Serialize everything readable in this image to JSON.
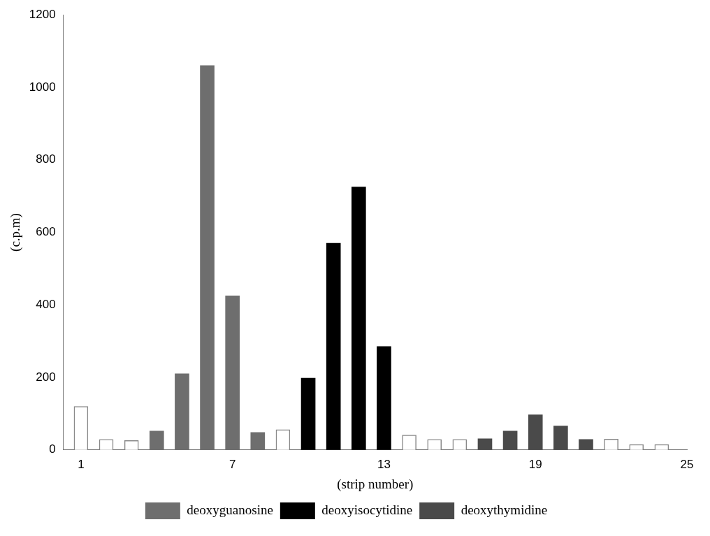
{
  "chart_data": {
    "type": "bar",
    "xlabel": "(strip number)",
    "ylabel": "(c.p.m)",
    "x": [
      1,
      2,
      3,
      4,
      5,
      6,
      7,
      8,
      9,
      10,
      11,
      12,
      13,
      14,
      15,
      16,
      17,
      18,
      19,
      20,
      21,
      22,
      23,
      24
    ],
    "xlim": [
      0.3,
      25
    ],
    "xticks": [
      1,
      7,
      13,
      19,
      25
    ],
    "ylim": [
      0,
      1200
    ],
    "yticks": [
      0,
      200,
      400,
      600,
      800,
      1000,
      1200
    ],
    "grid": false,
    "legend": "bottom",
    "series": [
      {
        "name": "deoxyguanosine",
        "color": "#6e6e6e",
        "values": [
          null,
          null,
          null,
          52,
          210,
          1060,
          425,
          48,
          null,
          null,
          null,
          null,
          null,
          null,
          null,
          null,
          null,
          null,
          null,
          null,
          null,
          null,
          null,
          null
        ]
      },
      {
        "name": "deoxyisocytidine",
        "color": "#000000",
        "values": [
          null,
          null,
          null,
          null,
          null,
          null,
          null,
          null,
          null,
          198,
          570,
          725,
          285,
          null,
          null,
          null,
          null,
          null,
          null,
          null,
          null,
          null,
          null,
          null
        ]
      },
      {
        "name": "deoxythymidine",
        "color": "#4a4a4a",
        "values": [
          null,
          null,
          null,
          null,
          null,
          null,
          null,
          null,
          null,
          null,
          null,
          null,
          null,
          null,
          null,
          null,
          31,
          52,
          97,
          66,
          29,
          null,
          null,
          null
        ]
      },
      {
        "color": "#ffffff",
        "values": [
          120,
          29,
          26,
          null,
          null,
          null,
          null,
          null,
          56,
          null,
          null,
          null,
          null,
          41,
          29,
          29,
          null,
          null,
          null,
          null,
          null,
          30,
          15,
          15
        ]
      }
    ]
  }
}
